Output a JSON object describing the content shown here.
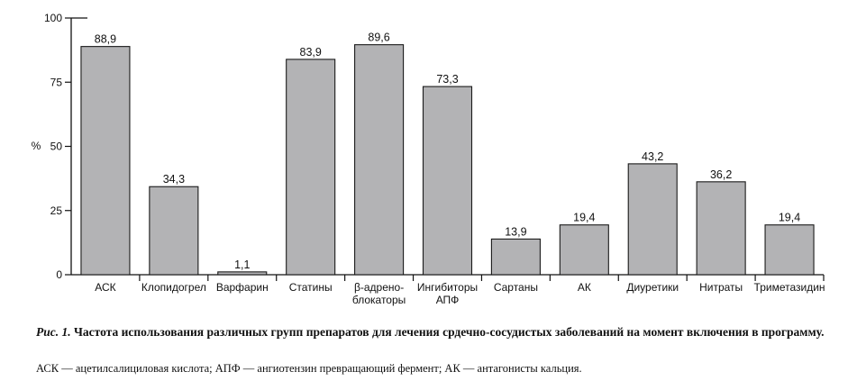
{
  "chart_data": {
    "type": "bar",
    "categories": [
      [
        "АСК"
      ],
      [
        "Клопидогрел"
      ],
      [
        "Варфарин"
      ],
      [
        "Статины"
      ],
      [
        "β-адрено-",
        "блокаторы"
      ],
      [
        "Ингибиторы",
        "АПФ"
      ],
      [
        "Сартаны"
      ],
      [
        "АК"
      ],
      [
        "Диуретики"
      ],
      [
        "Нитраты"
      ],
      [
        "Триметазидин"
      ]
    ],
    "values": [
      88.9,
      34.3,
      1.1,
      83.9,
      89.6,
      73.3,
      13.9,
      19.4,
      43.2,
      36.2,
      19.4
    ],
    "value_labels": [
      "88,9",
      "34,3",
      "1,1",
      "83,9",
      "89,6",
      "73,3",
      "13,9",
      "19,4",
      "43,2",
      "36,2",
      "19,4"
    ],
    "ylabel": "%",
    "ylim": [
      0,
      100
    ],
    "yticks": [
      0,
      25,
      50,
      75,
      100
    ],
    "grid": false,
    "legend": "none",
    "bar_color": "#b3b3b5",
    "bar_stroke": "#1a1a1a"
  },
  "caption": {
    "label": "Рис. 1.",
    "text": "Частота использования различных групп препаратов для лечения срдечно-сосудистых заболеваний на момент включения в программу."
  },
  "abbreviations": "АСК — ацетилсалициловая кислота; АПФ — ангиотензин превращающий фермент; АК — антагонисты кальция."
}
